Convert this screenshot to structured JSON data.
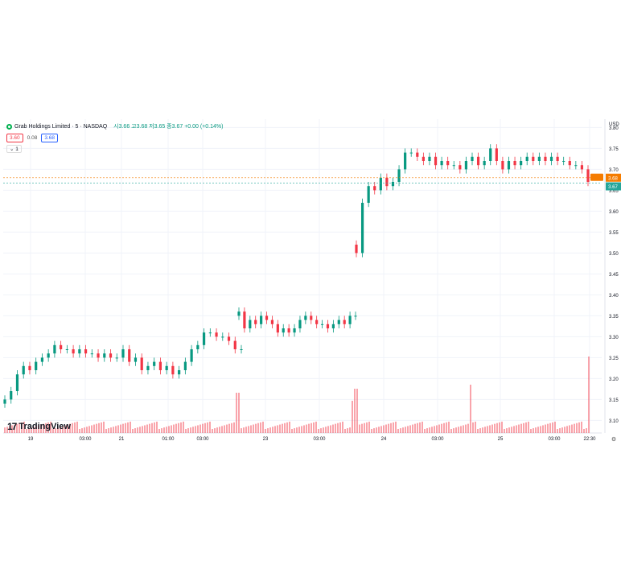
{
  "legend": {
    "symbol_name": "Grab Holdings Limited · 5 · NASDAQ",
    "ohlc_text": "시3.66 고3.68 저3.65 종3.67 +0.00 (+0.14%)",
    "sell_price": "3.60",
    "spread": "0.08",
    "buy_price": "3.68",
    "collapse_label": "⌄ 1"
  },
  "branding": {
    "logo_text": "TradingView"
  },
  "colors": {
    "up": "#089981",
    "down": "#f23645",
    "last_price_label": "#f57c00",
    "current_price_line": "#26a69a"
  },
  "chart_data": {
    "type": "candlestick",
    "currency": "USD",
    "y_ticks": [
      "3.80",
      "3.75",
      "3.70",
      "3.65",
      "3.60",
      "3.55",
      "3.50",
      "3.45",
      "3.40",
      "3.35",
      "3.30",
      "3.25",
      "3.20",
      "3.15",
      "3.10"
    ],
    "ylim": [
      3.07,
      3.82
    ],
    "x_ticks": [
      "19",
      "03:00",
      "21",
      "01:00",
      "03:00",
      "23",
      "03:00",
      "24",
      "03:00",
      "25",
      "03:00",
      "22:30"
    ],
    "last_price_tag": "3.68",
    "current_price_tag": "3.67",
    "price_lines": [
      3.68,
      3.667
    ],
    "grid": true,
    "series": [
      {
        "segment": "19",
        "close_path": [
          3.15,
          3.17,
          3.21,
          3.23,
          3.22,
          3.24,
          3.25,
          3.26,
          3.28,
          3.27,
          3.27,
          3.26,
          3.27,
          3.26,
          3.26,
          3.25,
          3.26,
          3.25,
          3.25,
          3.27,
          3.24,
          3.25,
          3.22,
          3.23,
          3.24,
          3.22,
          3.23,
          3.21,
          3.22,
          3.24,
          3.27,
          3.28,
          3.31,
          3.31,
          3.3,
          3.3,
          3.29,
          3.27,
          3.27
        ]
      },
      {
        "segment": "23",
        "close_path": [
          3.36,
          3.32,
          3.34,
          3.33,
          3.35,
          3.34,
          3.33,
          3.31,
          3.32,
          3.31,
          3.32,
          3.34,
          3.35,
          3.34,
          3.33,
          3.33,
          3.32,
          3.33,
          3.34,
          3.33,
          3.35,
          3.35
        ]
      },
      {
        "segment": "24-25",
        "close_path": [
          3.5,
          3.62,
          3.66,
          3.65,
          3.68,
          3.66,
          3.67,
          3.7,
          3.74,
          3.74,
          3.73,
          3.72,
          3.73,
          3.71,
          3.72,
          3.71,
          3.71,
          3.7,
          3.72,
          3.73,
          3.71,
          3.72,
          3.75,
          3.72,
          3.7,
          3.72,
          3.71,
          3.72,
          3.73,
          3.72,
          3.73,
          3.72,
          3.73,
          3.72,
          3.72,
          3.71,
          3.71,
          3.7,
          3.67
        ]
      }
    ],
    "volume": {
      "spikes_at": [
        "24",
        "25",
        "22:30"
      ]
    }
  }
}
